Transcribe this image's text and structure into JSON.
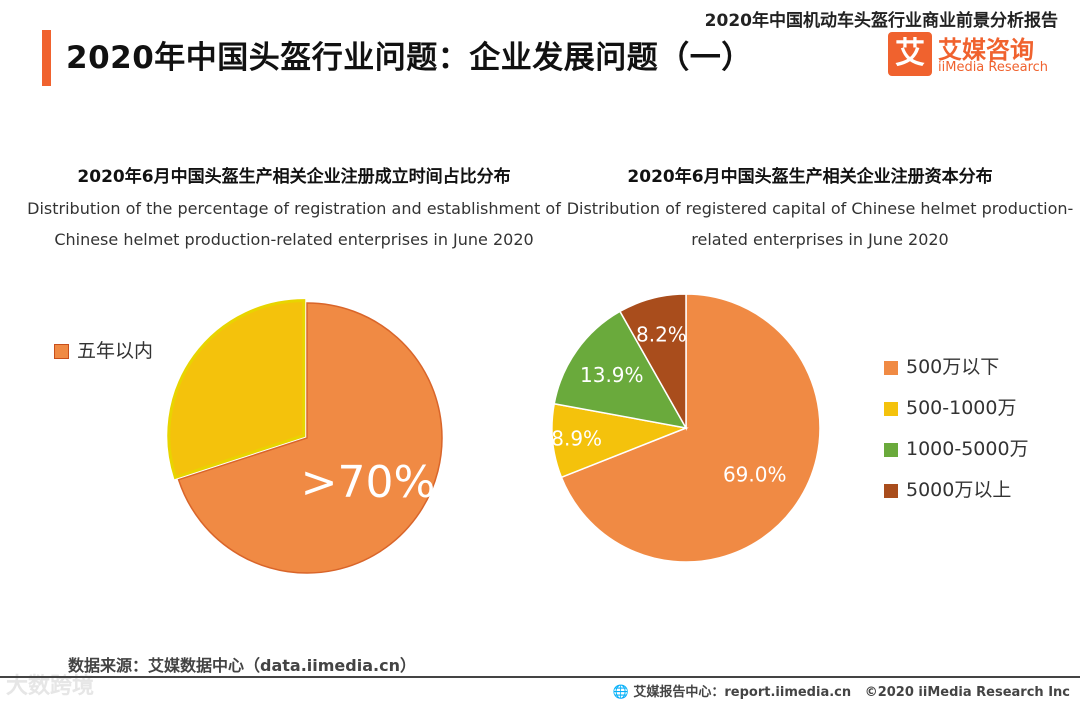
{
  "header": {
    "report_title": "2020年中国机动车头盔行业商业前景分析报告",
    "page_title": "2020年中国头盔行业问题：企业发展问题（一）",
    "logo_mark": "艾",
    "logo_cn": "艾媒咨询",
    "logo_en": "iiMedia Research"
  },
  "colors": {
    "accent": "#f0622e",
    "orange": "#f08a44",
    "yellow": "#f4c20c",
    "green": "#6aaa3c",
    "brown": "#a94d1c"
  },
  "chart_data": [
    {
      "type": "pie",
      "title": "2020年6月中国头盔生产相关企业注册成立时间占比分布",
      "subtitle": "Distribution of the percentage of registration and establishment of Chinese helmet production-related enterprises in June 2020",
      "categories": [
        "五年以内"
      ],
      "values": [
        70
      ],
      "remainder": 30,
      "data_label": ">70%",
      "legend": [
        "五年以内"
      ],
      "legend_position": "left"
    },
    {
      "type": "pie",
      "title": "2020年6月中国头盔生产相关企业注册资本分布",
      "subtitle": "Distribution of registered capital of Chinese helmet production-related enterprises in June 2020",
      "categories": [
        "500万以下",
        "500-1000万",
        "1000-5000万",
        "5000万以上"
      ],
      "values": [
        69.0,
        8.9,
        13.9,
        8.2
      ],
      "data_labels": [
        "69.0%",
        "8.9%",
        "13.9%",
        "8.2%"
      ],
      "legend_position": "right"
    }
  ],
  "footer": {
    "source": "数据来源：艾媒数据中心（data.iimedia.cn）",
    "center": "艾媒报告中心：report.iimedia.cn",
    "copyright": "©2020  iiMedia Research  Inc",
    "watermark": "大数跨境"
  }
}
